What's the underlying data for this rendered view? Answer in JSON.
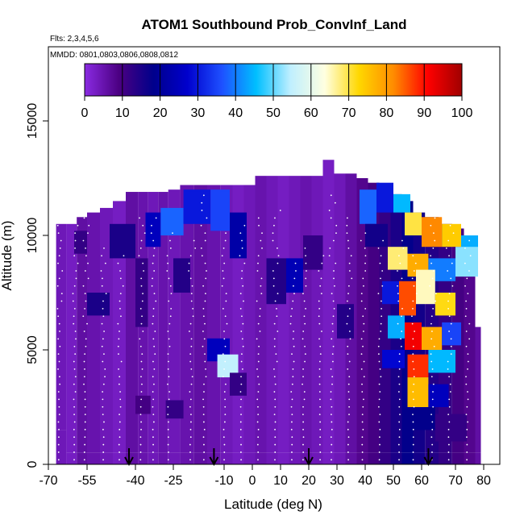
{
  "chart_data": {
    "type": "heatmap",
    "title": "ATOM1 Southbound Prob_ConvInf_Land",
    "flights_note": "Flts: 2,3,4,5,6",
    "dates_note": "MMDD: 0801,0803,0806,0808,0812",
    "xlabel": "Latitude (deg N)",
    "ylabel": "Altitude (m)",
    "xlim": [
      -70,
      85
    ],
    "ylim": [
      0,
      18000
    ],
    "x_ticks": [
      -70,
      -55,
      -40,
      -25,
      -10,
      0,
      10,
      20,
      30,
      40,
      50,
      60,
      70,
      80
    ],
    "x_tick_labels": [
      "-70",
      "-55",
      "-40",
      "-25",
      "-10",
      "0",
      "10",
      "20",
      "30",
      "40",
      "50",
      "60",
      "70",
      "80"
    ],
    "y_ticks": [
      0,
      5000,
      10000,
      15000
    ],
    "y_tick_labels": [
      "0",
      "5000",
      "10000",
      "15000"
    ],
    "colorbar": {
      "min": 0,
      "max": 100,
      "ticks": [
        0,
        10,
        20,
        30,
        40,
        50,
        60,
        70,
        80,
        90,
        100
      ],
      "tick_labels": [
        "0",
        "10",
        "20",
        "30",
        "40",
        "50",
        "60",
        "70",
        "80",
        "90",
        "100"
      ],
      "palette": [
        "#8a2be2",
        "#4b0082",
        "#00008b",
        "#0000cd",
        "#1e50ff",
        "#00bfff",
        "#bfefff",
        "#ffffe0",
        "#ffd700",
        "#ff8c00",
        "#ff0000",
        "#a00000"
      ]
    },
    "profile_markers_lat": [
      -42,
      -13,
      20,
      62
    ],
    "grid": false,
    "legend": "colorbar-top",
    "field": {
      "columns": [
        {
          "lat": [
            -67,
            -63
          ],
          "alt": [
            1500,
            10500
          ],
          "prob": 4
        },
        {
          "lat": [
            -63,
            -59
          ],
          "alt": [
            500,
            10500
          ],
          "prob": 3
        },
        {
          "lat": [
            -59,
            -55
          ],
          "alt": [
            500,
            10800
          ],
          "prob": 6
        },
        {
          "lat": [
            -55,
            -51
          ],
          "alt": [
            500,
            11000
          ],
          "prob": 5
        },
        {
          "lat": [
            -51,
            -47
          ],
          "alt": [
            500,
            11200
          ],
          "prob": 4
        },
        {
          "lat": [
            -47,
            -43
          ],
          "alt": [
            500,
            11500
          ],
          "prob": 3
        },
        {
          "lat": [
            -43,
            -39
          ],
          "alt": [
            500,
            11900
          ],
          "prob": 6
        },
        {
          "lat": [
            -39,
            -35
          ],
          "alt": [
            500,
            11900
          ],
          "prob": 5
        },
        {
          "lat": [
            -35,
            -31
          ],
          "alt": [
            500,
            11900
          ],
          "prob": 4
        },
        {
          "lat": [
            -31,
            -27
          ],
          "alt": [
            500,
            11900
          ],
          "prob": 5
        },
        {
          "lat": [
            -27,
            -23
          ],
          "alt": [
            500,
            12000
          ],
          "prob": 4
        },
        {
          "lat": [
            -23,
            -19
          ],
          "alt": [
            500,
            12200
          ],
          "prob": 5
        },
        {
          "lat": [
            -19,
            -15
          ],
          "alt": [
            500,
            12200
          ],
          "prob": 6
        },
        {
          "lat": [
            -15,
            -11
          ],
          "alt": [
            500,
            12200
          ],
          "prob": 5
        },
        {
          "lat": [
            -11,
            -7
          ],
          "alt": [
            500,
            12200
          ],
          "prob": 4
        },
        {
          "lat": [
            -7,
            -3
          ],
          "alt": [
            500,
            12200
          ],
          "prob": 3
        },
        {
          "lat": [
            -3,
            1
          ],
          "alt": [
            500,
            12200
          ],
          "prob": 4
        },
        {
          "lat": [
            1,
            5
          ],
          "alt": [
            500,
            12600
          ],
          "prob": 5
        },
        {
          "lat": [
            5,
            9
          ],
          "alt": [
            500,
            12600
          ],
          "prob": 4
        },
        {
          "lat": [
            9,
            13
          ],
          "alt": [
            500,
            12600
          ],
          "prob": 3
        },
        {
          "lat": [
            13,
            17
          ],
          "alt": [
            500,
            12600
          ],
          "prob": 4
        },
        {
          "lat": [
            17,
            21
          ],
          "alt": [
            500,
            12600
          ],
          "prob": 5
        },
        {
          "lat": [
            21,
            25
          ],
          "alt": [
            500,
            12600
          ],
          "prob": 4
        },
        {
          "lat": [
            25,
            29
          ],
          "alt": [
            500,
            13300
          ],
          "prob": 3
        },
        {
          "lat": [
            29,
            33
          ],
          "alt": [
            500,
            12700
          ],
          "prob": 4
        },
        {
          "lat": [
            33,
            37
          ],
          "alt": [
            500,
            12700
          ],
          "prob": 6
        },
        {
          "lat": [
            37,
            41
          ],
          "alt": [
            500,
            12500
          ],
          "prob": 8
        },
        {
          "lat": [
            41,
            45
          ],
          "alt": [
            500,
            12300
          ],
          "prob": 10
        },
        {
          "lat": [
            45,
            49
          ],
          "alt": [
            500,
            12000
          ],
          "prob": 12
        },
        {
          "lat": [
            49,
            53
          ],
          "alt": [
            500,
            11800
          ],
          "prob": 15
        },
        {
          "lat": [
            53,
            57
          ],
          "alt": [
            500,
            11500
          ],
          "prob": 18
        },
        {
          "lat": [
            57,
            61
          ],
          "alt": [
            500,
            11000
          ],
          "prob": 16
        },
        {
          "lat": [
            61,
            65
          ],
          "alt": [
            500,
            10800
          ],
          "prob": 14
        },
        {
          "lat": [
            65,
            69
          ],
          "alt": [
            500,
            10500
          ],
          "prob": 12
        },
        {
          "lat": [
            69,
            73
          ],
          "alt": [
            500,
            10300
          ],
          "prob": 10
        },
        {
          "lat": [
            73,
            77
          ],
          "alt": [
            500,
            9800
          ],
          "prob": 8
        },
        {
          "lat": [
            77,
            79
          ],
          "alt": [
            500,
            6000
          ],
          "prob": 6
        }
      ],
      "patches": [
        {
          "lat": [
            -60,
            -55
          ],
          "alt": [
            9200,
            10200
          ],
          "prob": 12
        },
        {
          "lat": [
            -48,
            -40
          ],
          "alt": [
            9000,
            10500
          ],
          "prob": 15
        },
        {
          "lat": [
            -36,
            -30
          ],
          "alt": [
            9500,
            11000
          ],
          "prob": 25
        },
        {
          "lat": [
            -30,
            -22
          ],
          "alt": [
            10000,
            11200
          ],
          "prob": 38
        },
        {
          "lat": [
            -22,
            -14
          ],
          "alt": [
            10500,
            12000
          ],
          "prob": 30
        },
        {
          "lat": [
            -14,
            -8
          ],
          "alt": [
            10200,
            12000
          ],
          "prob": 35
        },
        {
          "lat": [
            -8,
            -2
          ],
          "alt": [
            9000,
            11000
          ],
          "prob": 22
        },
        {
          "lat": [
            -55,
            -48
          ],
          "alt": [
            6500,
            7500
          ],
          "prob": 15
        },
        {
          "lat": [
            -40,
            -35
          ],
          "alt": [
            6000,
            9000
          ],
          "prob": 12
        },
        {
          "lat": [
            -25,
            -20
          ],
          "alt": [
            7500,
            9000
          ],
          "prob": 14
        },
        {
          "lat": [
            -15,
            -8
          ],
          "alt": [
            4500,
            5500
          ],
          "prob": 25
        },
        {
          "lat": [
            -12,
            -5
          ],
          "alt": [
            3800,
            4800
          ],
          "prob": 55
        },
        {
          "lat": [
            -8,
            -2
          ],
          "alt": [
            3000,
            4000
          ],
          "prob": 12
        },
        {
          "lat": [
            5,
            12
          ],
          "alt": [
            7000,
            9000
          ],
          "prob": 14
        },
        {
          "lat": [
            12,
            18
          ],
          "alt": [
            7500,
            9000
          ],
          "prob": 24
        },
        {
          "lat": [
            18,
            25
          ],
          "alt": [
            8500,
            10000
          ],
          "prob": 12
        },
        {
          "lat": [
            38,
            44
          ],
          "alt": [
            10500,
            12000
          ],
          "prob": 38
        },
        {
          "lat": [
            44,
            50
          ],
          "alt": [
            11000,
            12300
          ],
          "prob": 30
        },
        {
          "lat": [
            50,
            56
          ],
          "alt": [
            11000,
            11800
          ],
          "prob": 45
        },
        {
          "lat": [
            54,
            60
          ],
          "alt": [
            10000,
            11000
          ],
          "prob": 70
        },
        {
          "lat": [
            60,
            66
          ],
          "alt": [
            9500,
            10800
          ],
          "prob": 82
        },
        {
          "lat": [
            66,
            72
          ],
          "alt": [
            9500,
            10500
          ],
          "prob": 74
        },
        {
          "lat": [
            72,
            78
          ],
          "alt": [
            9200,
            10000
          ],
          "prob": 44
        },
        {
          "lat": [
            48,
            55
          ],
          "alt": [
            8500,
            9500
          ],
          "prob": 68
        },
        {
          "lat": [
            55,
            62
          ],
          "alt": [
            8200,
            9200
          ],
          "prob": 78
        },
        {
          "lat": [
            62,
            70
          ],
          "alt": [
            8000,
            9000
          ],
          "prob": 40
        },
        {
          "lat": [
            70,
            78
          ],
          "alt": [
            8200,
            9500
          ],
          "prob": 52
        },
        {
          "lat": [
            46,
            52
          ],
          "alt": [
            7000,
            8000
          ],
          "prob": 30
        },
        {
          "lat": [
            52,
            58
          ],
          "alt": [
            6500,
            8000
          ],
          "prob": 86
        },
        {
          "lat": [
            58,
            64
          ],
          "alt": [
            7000,
            8500
          ],
          "prob": 65
        },
        {
          "lat": [
            64,
            70
          ],
          "alt": [
            6500,
            7500
          ],
          "prob": 72
        },
        {
          "lat": [
            48,
            54
          ],
          "alt": [
            5500,
            6500
          ],
          "prob": 44
        },
        {
          "lat": [
            54,
            60
          ],
          "alt": [
            5000,
            6200
          ],
          "prob": 92
        },
        {
          "lat": [
            60,
            66
          ],
          "alt": [
            5000,
            6000
          ],
          "prob": 78
        },
        {
          "lat": [
            66,
            72
          ],
          "alt": [
            5200,
            6200
          ],
          "prob": 35
        },
        {
          "lat": [
            46,
            54
          ],
          "alt": [
            4200,
            5000
          ],
          "prob": 28
        },
        {
          "lat": [
            55,
            62
          ],
          "alt": [
            3800,
            4800
          ],
          "prob": 88
        },
        {
          "lat": [
            62,
            70
          ],
          "alt": [
            4000,
            5000
          ],
          "prob": 45
        },
        {
          "lat": [
            55,
            62
          ],
          "alt": [
            2500,
            3800
          ],
          "prob": 76
        },
        {
          "lat": [
            62,
            68
          ],
          "alt": [
            2500,
            3500
          ],
          "prob": 25
        },
        {
          "lat": [
            55,
            64
          ],
          "alt": [
            1500,
            2500
          ],
          "prob": 18
        },
        {
          "lat": [
            64,
            74
          ],
          "alt": [
            1000,
            2200
          ],
          "prob": 12
        },
        {
          "lat": [
            40,
            48
          ],
          "alt": [
            9500,
            10500
          ],
          "prob": 16
        },
        {
          "lat": [
            30,
            36
          ],
          "alt": [
            5500,
            7000
          ],
          "prob": 14
        },
        {
          "lat": [
            -40,
            -34
          ],
          "alt": [
            2200,
            3000
          ],
          "prob": 10
        },
        {
          "lat": [
            -28,
            -22
          ],
          "alt": [
            2000,
            2800
          ],
          "prob": 12
        }
      ]
    }
  }
}
